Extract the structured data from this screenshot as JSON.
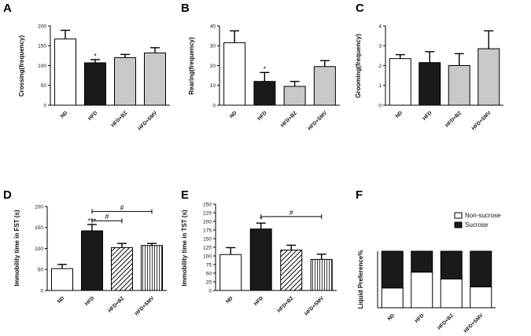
{
  "chart_data": [
    {
      "panel": "A",
      "type": "bar",
      "ylabel": "Crossing(frequency)",
      "ylim": [
        0,
        200
      ],
      "yticks": [
        0,
        50,
        100,
        150,
        200
      ],
      "categories": [
        "ND",
        "HFD",
        "HFD+BZ",
        "HFD+SMV"
      ],
      "values": [
        167,
        107,
        120,
        132
      ],
      "errors": [
        22,
        8,
        8,
        13
      ],
      "fills": [
        "white",
        "black",
        "lightgray",
        "lightgray"
      ],
      "annotations": [
        {
          "index": 1,
          "text": "*"
        }
      ],
      "comparisons": []
    },
    {
      "panel": "B",
      "type": "bar",
      "ylabel": "Rearing(frequency)",
      "ylim": [
        0,
        40
      ],
      "yticks": [
        0,
        10,
        20,
        30,
        40
      ],
      "categories": [
        "ND",
        "HFD",
        "HFD+BZ",
        "HFD+SMV"
      ],
      "values": [
        31.5,
        12,
        9.5,
        19.5
      ],
      "errors": [
        6,
        4.5,
        2.5,
        3
      ],
      "fills": [
        "white",
        "black",
        "lightgray",
        "lightgray"
      ],
      "annotations": [
        {
          "index": 1,
          "text": "*"
        }
      ],
      "comparisons": []
    },
    {
      "panel": "C",
      "type": "bar",
      "ylabel": "Grooming(frequency)",
      "ylim": [
        0,
        4
      ],
      "yticks": [
        0,
        1,
        2,
        3,
        4
      ],
      "categories": [
        "ND",
        "HFD",
        "HFD+BZ",
        "HFD+SMV"
      ],
      "values": [
        2.35,
        2.15,
        2.0,
        2.85
      ],
      "errors": [
        0.2,
        0.55,
        0.6,
        0.9
      ],
      "fills": [
        "white",
        "black",
        "lightgray",
        "lightgray"
      ],
      "annotations": [],
      "comparisons": []
    },
    {
      "panel": "D",
      "type": "bar",
      "ylabel": "Immobility time in FST (s)",
      "ylim": [
        0,
        200
      ],
      "yticks": [
        0,
        50,
        100,
        150,
        200
      ],
      "categories": [
        "ND",
        "HFD",
        "HFD+BZ",
        "HFD+SMV"
      ],
      "values": [
        52,
        142,
        102,
        107
      ],
      "errors": [
        10,
        15,
        10,
        5
      ],
      "fills": [
        "white",
        "black",
        "hatch",
        "vlines"
      ],
      "annotations": [
        {
          "index": 1,
          "text": "***"
        }
      ],
      "comparisons": [
        {
          "from": 1,
          "to": 2,
          "level": 166,
          "text": "#"
        },
        {
          "from": 1,
          "to": 3,
          "level": 188,
          "text": "#"
        }
      ]
    },
    {
      "panel": "E",
      "type": "bar",
      "ylabel": "Immobility time in TST (s)",
      "ylim": [
        0,
        250
      ],
      "yticks": [
        0,
        25,
        50,
        75,
        100,
        125,
        150,
        175,
        200,
        225,
        250
      ],
      "categories": [
        "ND",
        "HFD",
        "HFD+BZ",
        "HFD+SMV"
      ],
      "values": [
        104,
        178,
        117,
        90
      ],
      "errors": [
        20,
        17,
        14,
        15
      ],
      "fills": [
        "white",
        "black",
        "hatch",
        "vlines"
      ],
      "annotations": [
        {
          "index": 1,
          "text": "*"
        }
      ],
      "comparisons": [
        {
          "from": 1,
          "to": 3,
          "level": 214,
          "text": "#"
        }
      ]
    },
    {
      "panel": "F",
      "type": "bar",
      "stacked": true,
      "ylabel": "Liquid Preference%",
      "ylim": [
        0,
        100
      ],
      "categories": [
        "ND",
        "HFD",
        "HFD+BZ",
        "HFD+SMV"
      ],
      "series": [
        {
          "name": "Non-sucrose",
          "values": [
            35,
            63,
            51,
            37
          ],
          "color": "#ffffff"
        },
        {
          "name": "Sucrose",
          "values": [
            65,
            37,
            49,
            63
          ],
          "color": "#1a1a1a"
        }
      ],
      "legend_position": "top-right"
    }
  ]
}
